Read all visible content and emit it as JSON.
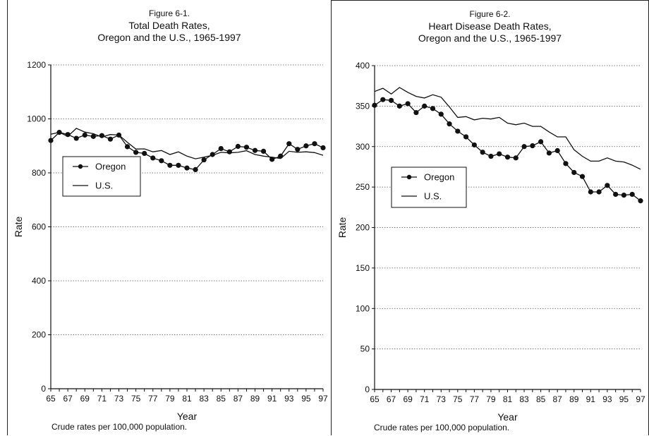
{
  "charts": [
    {
      "title_line1": "Figure 6-1.",
      "title_line2": "Total Death Rates,",
      "title_line3": "Oregon and the U.S., 1965-1997",
      "footnote": "Crude rates per 100,000 population."
    },
    {
      "title_line1": "Figure 6-2.",
      "title_line2": "Heart Disease Death Rates,",
      "title_line3": "Oregon and the U.S., 1965-1997",
      "footnote": "Crude rates per 100,000 population."
    }
  ],
  "chart_data": [
    {
      "type": "line",
      "title": "Figure 6-1. Total Death Rates, Oregon and the U.S., 1965-1997",
      "xlabel": "Year",
      "ylabel": "Rate",
      "ylim": [
        0,
        1200
      ],
      "yticks": [
        0,
        200,
        400,
        600,
        800,
        1000,
        1200
      ],
      "xtick_labels": [
        "65",
        "67",
        "69",
        "71",
        "73",
        "75",
        "77",
        "79",
        "81",
        "83",
        "85",
        "87",
        "89",
        "91",
        "93",
        "95",
        "97"
      ],
      "x": [
        1965,
        1966,
        1967,
        1968,
        1969,
        1970,
        1971,
        1972,
        1973,
        1974,
        1975,
        1976,
        1977,
        1978,
        1979,
        1980,
        1981,
        1982,
        1983,
        1984,
        1985,
        1986,
        1987,
        1988,
        1989,
        1990,
        1991,
        1992,
        1993,
        1994,
        1995,
        1996,
        1997
      ],
      "grid": "horizontal dotted",
      "legend": "upper-left",
      "series": [
        {
          "name": "Oregon",
          "marker": "dot",
          "values": [
            920,
            950,
            942,
            928,
            940,
            935,
            938,
            925,
            940,
            897,
            876,
            872,
            855,
            845,
            828,
            828,
            818,
            812,
            848,
            868,
            890,
            878,
            898,
            895,
            883,
            880,
            850,
            862,
            908,
            887,
            900,
            908,
            893
          ]
        },
        {
          "name": "U.S.",
          "marker": "none",
          "values": [
            943,
            950,
            935,
            965,
            951,
            945,
            933,
            942,
            940,
            913,
            888,
            889,
            878,
            883,
            868,
            878,
            862,
            852,
            858,
            865,
            876,
            874,
            876,
            882,
            868,
            862,
            858,
            853,
            880,
            876,
            878,
            875,
            865
          ]
        }
      ]
    },
    {
      "type": "line",
      "title": "Figure 6-2. Heart Disease Death Rates, Oregon and the U.S., 1965-1997",
      "xlabel": "Year",
      "ylabel": "Rate",
      "ylim": [
        0,
        400
      ],
      "yticks": [
        0,
        50,
        100,
        150,
        200,
        250,
        300,
        350,
        400
      ],
      "xtick_labels": [
        "65",
        "67",
        "69",
        "71",
        "73",
        "75",
        "77",
        "79",
        "81",
        "83",
        "85",
        "87",
        "89",
        "91",
        "93",
        "95",
        "97"
      ],
      "x": [
        1965,
        1966,
        1967,
        1968,
        1969,
        1970,
        1971,
        1972,
        1973,
        1974,
        1975,
        1976,
        1977,
        1978,
        1979,
        1980,
        1981,
        1982,
        1983,
        1984,
        1985,
        1986,
        1987,
        1988,
        1989,
        1990,
        1991,
        1992,
        1993,
        1994,
        1995,
        1996,
        1997
      ],
      "grid": "horizontal dotted",
      "legend": "center-left",
      "series": [
        {
          "name": "Oregon",
          "marker": "dot",
          "values": [
            351,
            358,
            357,
            350,
            353,
            342,
            350,
            347,
            340,
            328,
            319,
            312,
            302,
            293,
            288,
            291,
            287,
            286,
            300,
            301,
            306,
            292,
            295,
            279,
            268,
            263,
            244,
            244,
            252,
            241,
            240,
            241,
            233
          ]
        },
        {
          "name": "U.S.",
          "marker": "none",
          "values": [
            368,
            372,
            365,
            373,
            367,
            362,
            360,
            364,
            361,
            349,
            336,
            337,
            333,
            335,
            334,
            336,
            329,
            327,
            329,
            325,
            325,
            318,
            312,
            312,
            296,
            288,
            282,
            282,
            286,
            282,
            281,
            277,
            272
          ]
        }
      ]
    }
  ]
}
